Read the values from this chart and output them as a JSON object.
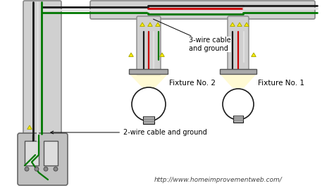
{
  "bg_color": "#ffffff",
  "url_text": "http://www.homeimprovementweb.com/",
  "label_3wire": "3-wire cable\nand ground",
  "label_2wire": "2-wire cable and ground",
  "label_fixture1": "Fixture No. 1",
  "label_fixture2": "Fixture No. 2",
  "wire_black": "#1a1a1a",
  "wire_white": "#e0e0e0",
  "wire_red": "#cc0000",
  "wire_green": "#007700",
  "wire_nut": "#ffee00",
  "conduit_fill": "#d0d0d0",
  "conduit_edge": "#888888",
  "box_fill": "#c0c0c0",
  "box_edge": "#666666",
  "fixture_base": "#999999",
  "bulb_fill": "#ffffff",
  "light_cone": "#fffacd",
  "switch_fill": "#dddddd",
  "wall_fill": "#e8e8e8",
  "wall_edge": "#aaaaaa"
}
